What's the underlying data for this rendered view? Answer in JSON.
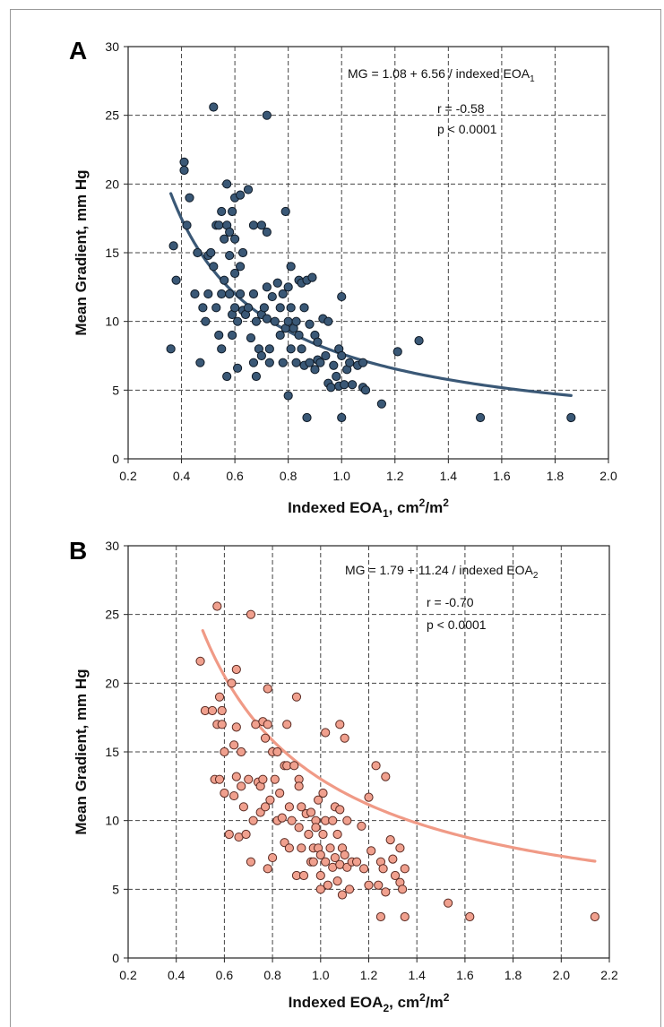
{
  "chart_data": [
    {
      "panel": "A",
      "type": "scatter",
      "xlabel": "Indexed EOA",
      "xlabel_sub": "1",
      "xlabel_unit": ", cm",
      "xlabel_sup1": "2",
      "xlabel_mid": "/m",
      "xlabel_sup2": "2",
      "ylabel": "Mean Gradient, mm Hg",
      "xlim": [
        0.2,
        2.0
      ],
      "ylim": [
        0,
        30
      ],
      "xticks": [
        "0.2",
        "0.4",
        "0.6",
        "0.8",
        "1.0",
        "1.2",
        "1.4",
        "1.6",
        "1.8",
        "2.0"
      ],
      "yticks": [
        "0",
        "5",
        "10",
        "15",
        "20",
        "25",
        "30"
      ],
      "grid": true,
      "equation": "MG = 1.08 + 6.56 / indexed EOA",
      "equation_sub": "1",
      "r_text": "r = -0.58",
      "p_text": "p < 0.0001",
      "fit": {
        "a": 1.08,
        "b": 6.56,
        "x_from": 0.36,
        "x_to": 1.86
      },
      "colors": {
        "point_fill": "#3a5876",
        "point_stroke": "#0f1a26",
        "line": "#3a5876"
      },
      "points": [
        [
          0.36,
          8.0
        ],
        [
          0.37,
          15.5
        ],
        [
          0.38,
          13.0
        ],
        [
          0.41,
          21.6
        ],
        [
          0.41,
          21.0
        ],
        [
          0.42,
          17.0
        ],
        [
          0.43,
          19.0
        ],
        [
          0.45,
          12.0
        ],
        [
          0.46,
          15.0
        ],
        [
          0.47,
          7.0
        ],
        [
          0.48,
          11.0
        ],
        [
          0.49,
          10.0
        ],
        [
          0.5,
          14.8
        ],
        [
          0.5,
          12.0
        ],
        [
          0.51,
          15.0
        ],
        [
          0.52,
          25.6
        ],
        [
          0.52,
          14.0
        ],
        [
          0.53,
          17.0
        ],
        [
          0.53,
          11.0
        ],
        [
          0.54,
          17.0
        ],
        [
          0.54,
          9.0
        ],
        [
          0.55,
          12.0
        ],
        [
          0.55,
          18.0
        ],
        [
          0.55,
          8.0
        ],
        [
          0.56,
          16.0
        ],
        [
          0.56,
          13.0
        ],
        [
          0.57,
          20.0
        ],
        [
          0.57,
          17.0
        ],
        [
          0.57,
          6.0
        ],
        [
          0.58,
          16.5
        ],
        [
          0.58,
          14.8
        ],
        [
          0.58,
          12.0
        ],
        [
          0.59,
          18.0
        ],
        [
          0.59,
          10.5
        ],
        [
          0.59,
          9.0
        ],
        [
          0.6,
          19.0
        ],
        [
          0.6,
          16.0
        ],
        [
          0.6,
          13.5
        ],
        [
          0.6,
          11.0
        ],
        [
          0.61,
          10.0
        ],
        [
          0.61,
          6.6
        ],
        [
          0.62,
          19.2
        ],
        [
          0.62,
          14.0
        ],
        [
          0.62,
          12.0
        ],
        [
          0.63,
          10.8
        ],
        [
          0.63,
          15.0
        ],
        [
          0.64,
          10.5
        ],
        [
          0.65,
          19.6
        ],
        [
          0.65,
          11.0
        ],
        [
          0.66,
          8.8
        ],
        [
          0.67,
          17.0
        ],
        [
          0.67,
          12.0
        ],
        [
          0.67,
          7.0
        ],
        [
          0.68,
          10.0
        ],
        [
          0.68,
          6.0
        ],
        [
          0.69,
          8.0
        ],
        [
          0.7,
          10.5
        ],
        [
          0.7,
          17.0
        ],
        [
          0.7,
          7.5
        ],
        [
          0.71,
          11.0
        ],
        [
          0.72,
          25.0
        ],
        [
          0.72,
          16.5
        ],
        [
          0.72,
          12.5
        ],
        [
          0.72,
          10.2
        ],
        [
          0.73,
          8.0
        ],
        [
          0.73,
          7.0
        ],
        [
          0.74,
          11.8
        ],
        [
          0.75,
          10.0
        ],
        [
          0.76,
          12.8
        ],
        [
          0.77,
          11.0
        ],
        [
          0.77,
          9.0
        ],
        [
          0.78,
          12.0
        ],
        [
          0.78,
          7.0
        ],
        [
          0.79,
          18.0
        ],
        [
          0.79,
          9.5
        ],
        [
          0.8,
          12.5
        ],
        [
          0.8,
          10.0
        ],
        [
          0.8,
          4.6
        ],
        [
          0.81,
          14.0
        ],
        [
          0.81,
          11.0
        ],
        [
          0.81,
          8.0
        ],
        [
          0.82,
          9.5
        ],
        [
          0.83,
          7.0
        ],
        [
          0.83,
          10.0
        ],
        [
          0.84,
          13.0
        ],
        [
          0.84,
          9.0
        ],
        [
          0.85,
          12.8
        ],
        [
          0.85,
          8.0
        ],
        [
          0.86,
          11.0
        ],
        [
          0.86,
          6.8
        ],
        [
          0.87,
          13.0
        ],
        [
          0.87,
          3.0
        ],
        [
          0.88,
          9.8
        ],
        [
          0.88,
          7.0
        ],
        [
          0.89,
          13.2
        ],
        [
          0.9,
          9.0
        ],
        [
          0.9,
          6.5
        ],
        [
          0.91,
          8.5
        ],
        [
          0.91,
          7.2
        ],
        [
          0.92,
          7.0
        ],
        [
          0.93,
          10.2
        ],
        [
          0.94,
          7.5
        ],
        [
          0.95,
          10.0
        ],
        [
          0.95,
          5.5
        ],
        [
          0.96,
          5.2
        ],
        [
          0.97,
          6.8
        ],
        [
          0.98,
          6.0
        ],
        [
          0.99,
          8.0
        ],
        [
          0.99,
          5.3
        ],
        [
          1.0,
          3.0
        ],
        [
          1.0,
          7.5
        ],
        [
          1.0,
          11.8
        ],
        [
          1.01,
          5.4
        ],
        [
          1.02,
          6.5
        ],
        [
          1.03,
          7.0
        ],
        [
          1.04,
          5.4
        ],
        [
          1.06,
          6.8
        ],
        [
          1.08,
          7.0
        ],
        [
          1.08,
          5.2
        ],
        [
          1.09,
          5.0
        ],
        [
          1.15,
          4.0
        ],
        [
          1.21,
          7.8
        ],
        [
          1.29,
          8.6
        ],
        [
          1.52,
          3.0
        ],
        [
          1.86,
          3.0
        ]
      ]
    },
    {
      "panel": "B",
      "type": "scatter",
      "xlabel": "Indexed EOA",
      "xlabel_sub": "2",
      "xlabel_unit": ", cm",
      "xlabel_sup1": "2",
      "xlabel_mid": "/m",
      "xlabel_sup2": "2",
      "ylabel": "Mean Gradient, mm Hg",
      "xlim": [
        0.2,
        2.2
      ],
      "ylim": [
        0,
        30
      ],
      "xticks": [
        "0.2",
        "0.4",
        "0.6",
        "0.8",
        "1.0",
        "1.2",
        "1.4",
        "1.6",
        "1.8",
        "2.0",
        "2.2"
      ],
      "yticks": [
        "0",
        "5",
        "10",
        "15",
        "20",
        "25",
        "30"
      ],
      "grid": true,
      "equation": "MG = 1.79 + 11.24 / indexed EOA",
      "equation_sub": "2",
      "r_text": "r = -0.70",
      "p_text": "p < 0.0001",
      "fit": {
        "a": 1.79,
        "b": 11.24,
        "x_from": 0.51,
        "x_to": 2.14
      },
      "colors": {
        "point_fill": "#f0a08e",
        "point_stroke": "#5a2a22",
        "line": "#f09a86"
      },
      "points": [
        [
          0.5,
          21.6
        ],
        [
          0.52,
          18.0
        ],
        [
          0.55,
          18.0
        ],
        [
          0.56,
          13.0
        ],
        [
          0.57,
          25.6
        ],
        [
          0.57,
          17.0
        ],
        [
          0.58,
          19.0
        ],
        [
          0.58,
          13.0
        ],
        [
          0.59,
          18.0
        ],
        [
          0.59,
          17.0
        ],
        [
          0.6,
          15.0
        ],
        [
          0.6,
          12.0
        ],
        [
          0.62,
          9.0
        ],
        [
          0.63,
          20.0
        ],
        [
          0.64,
          15.5
        ],
        [
          0.64,
          11.8
        ],
        [
          0.65,
          21.0
        ],
        [
          0.65,
          16.8
        ],
        [
          0.65,
          13.2
        ],
        [
          0.66,
          8.8
        ],
        [
          0.67,
          15.0
        ],
        [
          0.67,
          12.5
        ],
        [
          0.68,
          11.0
        ],
        [
          0.69,
          9.0
        ],
        [
          0.7,
          13.0
        ],
        [
          0.71,
          25.0
        ],
        [
          0.71,
          7.0
        ],
        [
          0.72,
          10.0
        ],
        [
          0.73,
          17.0
        ],
        [
          0.74,
          12.8
        ],
        [
          0.75,
          12.5
        ],
        [
          0.75,
          10.6
        ],
        [
          0.76,
          17.2
        ],
        [
          0.76,
          13.0
        ],
        [
          0.77,
          16.0
        ],
        [
          0.77,
          11.0
        ],
        [
          0.78,
          19.6
        ],
        [
          0.78,
          17.0
        ],
        [
          0.78,
          6.5
        ],
        [
          0.79,
          11.5
        ],
        [
          0.8,
          15.0
        ],
        [
          0.8,
          7.3
        ],
        [
          0.81,
          13.0
        ],
        [
          0.82,
          15.0
        ],
        [
          0.82,
          10.0
        ],
        [
          0.83,
          12.0
        ],
        [
          0.84,
          10.2
        ],
        [
          0.85,
          14.0
        ],
        [
          0.85,
          8.4
        ],
        [
          0.86,
          17.0
        ],
        [
          0.86,
          14.0
        ],
        [
          0.87,
          11.0
        ],
        [
          0.87,
          8.0
        ],
        [
          0.88,
          10.0
        ],
        [
          0.89,
          14.0
        ],
        [
          0.9,
          19.0
        ],
        [
          0.9,
          6.0
        ],
        [
          0.91,
          13.0
        ],
        [
          0.91,
          12.5
        ],
        [
          0.91,
          9.5
        ],
        [
          0.92,
          11.0
        ],
        [
          0.92,
          8.0
        ],
        [
          0.93,
          6.0
        ],
        [
          0.94,
          10.5
        ],
        [
          0.95,
          9.0
        ],
        [
          0.96,
          10.6
        ],
        [
          0.96,
          7.0
        ],
        [
          0.97,
          8.0
        ],
        [
          0.97,
          7.0
        ],
        [
          0.98,
          10.0
        ],
        [
          0.98,
          9.5
        ],
        [
          0.99,
          11.5
        ],
        [
          0.99,
          8.0
        ],
        [
          1.0,
          7.5
        ],
        [
          1.0,
          6.0
        ],
        [
          1.0,
          5.0
        ],
        [
          1.01,
          12.0
        ],
        [
          1.01,
          9.0
        ],
        [
          1.02,
          16.4
        ],
        [
          1.02,
          10.0
        ],
        [
          1.02,
          7.0
        ],
        [
          1.03,
          5.3
        ],
        [
          1.04,
          8.0
        ],
        [
          1.05,
          10.0
        ],
        [
          1.05,
          6.6
        ],
        [
          1.06,
          11.0
        ],
        [
          1.06,
          7.3
        ],
        [
          1.07,
          9.0
        ],
        [
          1.07,
          5.6
        ],
        [
          1.08,
          17.0
        ],
        [
          1.08,
          10.8
        ],
        [
          1.08,
          6.8
        ],
        [
          1.09,
          8.0
        ],
        [
          1.09,
          4.6
        ],
        [
          1.1,
          16.0
        ],
        [
          1.1,
          7.5
        ],
        [
          1.11,
          10.0
        ],
        [
          1.11,
          6.6
        ],
        [
          1.12,
          5.0
        ],
        [
          1.13,
          7.0
        ],
        [
          1.15,
          7.0
        ],
        [
          1.17,
          9.6
        ],
        [
          1.18,
          6.5
        ],
        [
          1.2,
          11.7
        ],
        [
          1.2,
          5.3
        ],
        [
          1.21,
          7.8
        ],
        [
          1.23,
          14.0
        ],
        [
          1.24,
          5.3
        ],
        [
          1.25,
          3.0
        ],
        [
          1.25,
          7.0
        ],
        [
          1.26,
          6.5
        ],
        [
          1.27,
          13.2
        ],
        [
          1.27,
          4.8
        ],
        [
          1.29,
          8.6
        ],
        [
          1.3,
          7.2
        ],
        [
          1.31,
          6.0
        ],
        [
          1.33,
          8.0
        ],
        [
          1.33,
          5.5
        ],
        [
          1.34,
          5.0
        ],
        [
          1.35,
          6.5
        ],
        [
          1.35,
          3.0
        ],
        [
          1.53,
          4.0
        ],
        [
          1.62,
          3.0
        ],
        [
          2.14,
          3.0
        ]
      ]
    }
  ]
}
